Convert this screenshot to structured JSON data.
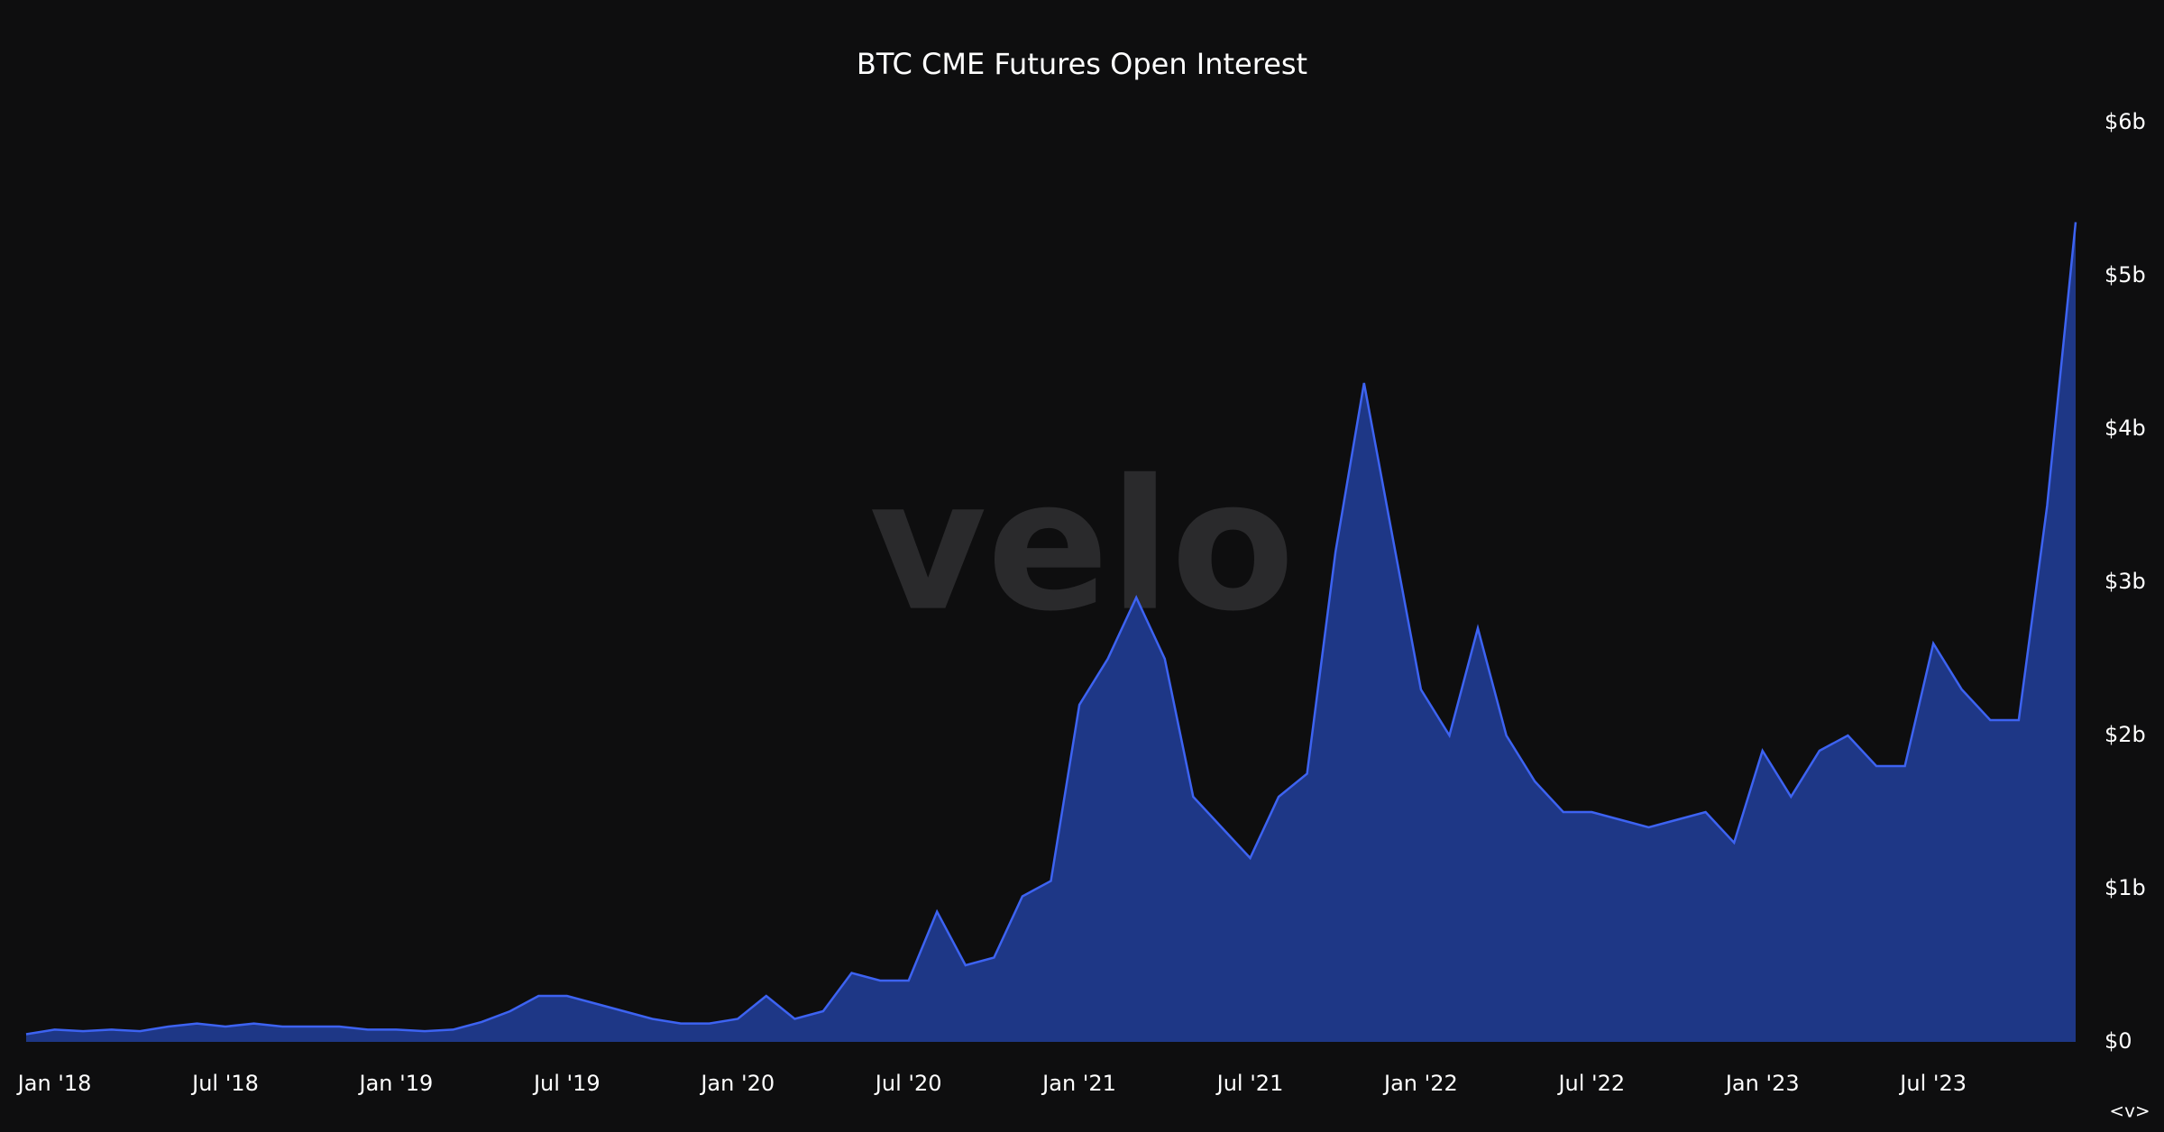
{
  "chart_data": {
    "type": "area",
    "title": "BTC CME Futures Open Interest",
    "watermark": "velo",
    "nav_hint": "<v>",
    "x": [
      "2017-12",
      "2018-01",
      "2018-02",
      "2018-03",
      "2018-04",
      "2018-05",
      "2018-06",
      "2018-07",
      "2018-08",
      "2018-09",
      "2018-10",
      "2018-11",
      "2018-12",
      "2019-01",
      "2019-02",
      "2019-03",
      "2019-04",
      "2019-05",
      "2019-06",
      "2019-07",
      "2019-08",
      "2019-09",
      "2019-10",
      "2019-11",
      "2019-12",
      "2020-01",
      "2020-02",
      "2020-03",
      "2020-04",
      "2020-05",
      "2020-06",
      "2020-07",
      "2020-08",
      "2020-09",
      "2020-10",
      "2020-11",
      "2020-12",
      "2021-01",
      "2021-02",
      "2021-03",
      "2021-04",
      "2021-05",
      "2021-06",
      "2021-07",
      "2021-08",
      "2021-09",
      "2021-10",
      "2021-11",
      "2021-12",
      "2022-01",
      "2022-02",
      "2022-03",
      "2022-04",
      "2022-05",
      "2022-06",
      "2022-07",
      "2022-08",
      "2022-09",
      "2022-10",
      "2022-11",
      "2022-12",
      "2023-01",
      "2023-02",
      "2023-03",
      "2023-04",
      "2023-05",
      "2023-06",
      "2023-07",
      "2023-08",
      "2023-09",
      "2023-10",
      "2023-11",
      "2023-12"
    ],
    "series": [
      {
        "name": "Open Interest",
        "color": "#3d63f2",
        "fill": "#1e3786",
        "values": [
          0.05,
          0.08,
          0.07,
          0.08,
          0.07,
          0.1,
          0.12,
          0.1,
          0.12,
          0.1,
          0.1,
          0.1,
          0.08,
          0.08,
          0.07,
          0.08,
          0.13,
          0.2,
          0.3,
          0.3,
          0.25,
          0.2,
          0.15,
          0.12,
          0.12,
          0.15,
          0.3,
          0.15,
          0.2,
          0.45,
          0.4,
          0.4,
          0.85,
          0.5,
          0.55,
          0.95,
          1.05,
          2.2,
          2.5,
          2.9,
          2.5,
          1.6,
          1.4,
          1.2,
          1.6,
          1.75,
          3.2,
          4.3,
          3.3,
          2.3,
          2.0,
          2.7,
          2.0,
          1.7,
          1.5,
          1.5,
          1.45,
          1.4,
          1.45,
          1.5,
          1.3,
          1.9,
          1.6,
          1.9,
          2.0,
          1.8,
          1.8,
          2.6,
          2.3,
          2.1,
          2.1,
          3.5,
          5.35
        ]
      }
    ],
    "xlim": [
      "2017-12",
      "2023-12"
    ],
    "xticks": [
      {
        "value": "2018-01",
        "label": "Jan '18"
      },
      {
        "value": "2018-07",
        "label": "Jul '18"
      },
      {
        "value": "2019-01",
        "label": "Jan '19"
      },
      {
        "value": "2019-07",
        "label": "Jul '19"
      },
      {
        "value": "2020-01",
        "label": "Jan '20"
      },
      {
        "value": "2020-07",
        "label": "Jul '20"
      },
      {
        "value": "2021-01",
        "label": "Jan '21"
      },
      {
        "value": "2021-07",
        "label": "Jul '21"
      },
      {
        "value": "2022-01",
        "label": "Jan '22"
      },
      {
        "value": "2022-07",
        "label": "Jul '22"
      },
      {
        "value": "2023-01",
        "label": "Jan '23"
      },
      {
        "value": "2023-07",
        "label": "Jul '23"
      }
    ],
    "ylim": [
      0,
      6
    ],
    "yticks": [
      {
        "value": 0,
        "label": "$0"
      },
      {
        "value": 1,
        "label": "$1b"
      },
      {
        "value": 2,
        "label": "$2b"
      },
      {
        "value": 3,
        "label": "$3b"
      },
      {
        "value": 4,
        "label": "$4b"
      },
      {
        "value": 5,
        "label": "$5b"
      },
      {
        "value": 6,
        "label": "$6b"
      }
    ],
    "grid": false
  }
}
